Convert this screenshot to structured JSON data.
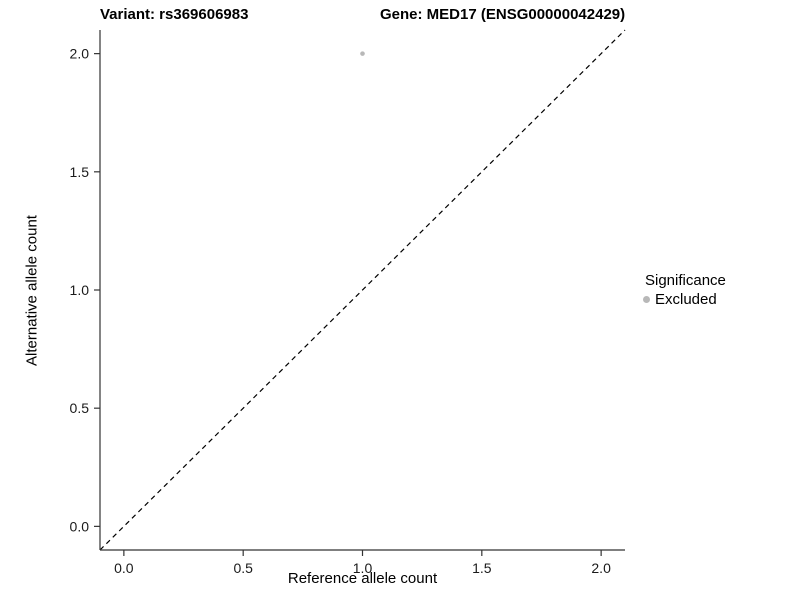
{
  "titles": {
    "variant": "Variant: rs369606983",
    "gene": "Gene: MED17 (ENSG00000042429)"
  },
  "axes": {
    "x_label": "Reference allele count",
    "y_label": "Alternative allele count"
  },
  "legend": {
    "title": "Significance",
    "items": [
      {
        "label": "Excluded",
        "color": "#b8b8b8"
      }
    ]
  },
  "chart_data": {
    "type": "scatter",
    "title": "Variant: rs369606983   Gene: MED17 (ENSG00000042429)",
    "xlabel": "Reference allele count",
    "ylabel": "Alternative allele count",
    "xlim": [
      -0.1,
      2.1
    ],
    "ylim": [
      -0.1,
      2.1
    ],
    "xticks": [
      0.0,
      0.5,
      1.0,
      1.5,
      2.0
    ],
    "yticks": [
      0.0,
      0.5,
      1.0,
      1.5,
      2.0
    ],
    "xtick_labels": [
      "0.0",
      "0.5",
      "1.0",
      "1.5",
      "2.0"
    ],
    "ytick_labels": [
      "0.0",
      "0.5",
      "1.0",
      "1.5",
      "2.0"
    ],
    "grid": false,
    "legend_position": "right",
    "series": [
      {
        "name": "Excluded",
        "color": "#b8b8b8",
        "points": [
          [
            1.0,
            2.0
          ]
        ]
      }
    ],
    "reference_line": {
      "kind": "identity",
      "style": "dashed",
      "color": "#000000",
      "from": [
        -0.1,
        -0.1
      ],
      "to": [
        2.1,
        2.1
      ]
    },
    "axis_color": "#333333",
    "tick_label_color": "#1a1a1a"
  }
}
